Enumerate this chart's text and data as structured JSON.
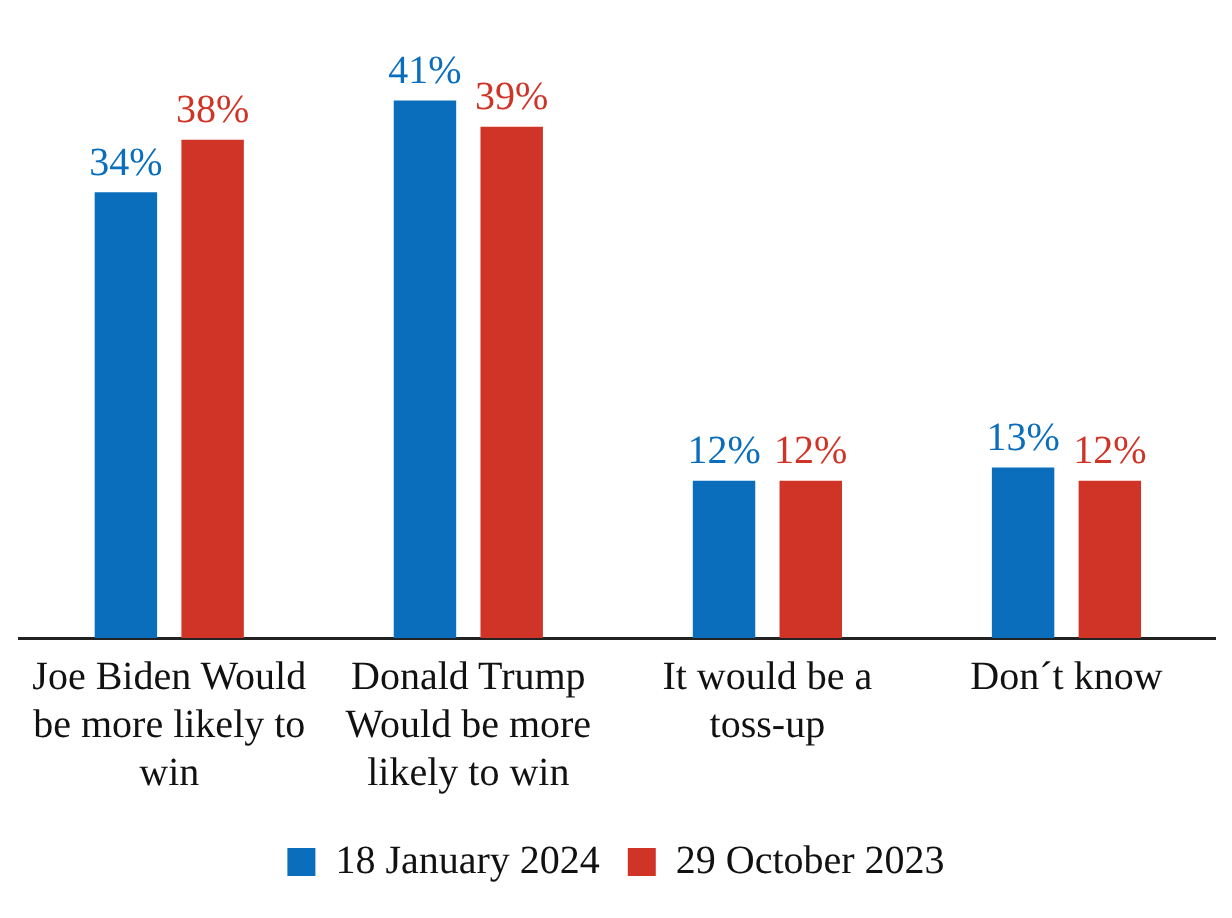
{
  "chart_data": {
    "type": "bar",
    "categories": [
      "Joe Biden Would be more likely to win",
      "Donald Trump Would be more likely to win",
      "It would be a toss-up",
      "Don´t know"
    ],
    "series": [
      {
        "name": "18 January 2024",
        "color": "#0a6ebd",
        "values": [
          34,
          41,
          12,
          13
        ],
        "value_labels": [
          "34%",
          "41%",
          "12%",
          "13%"
        ]
      },
      {
        "name": "29 October 2023",
        "color": "#d03427",
        "values": [
          38,
          39,
          12,
          12
        ],
        "value_labels": [
          "38%",
          "39%",
          "12%",
          "12%"
        ]
      }
    ],
    "legend": "bottom",
    "grid": false
  }
}
